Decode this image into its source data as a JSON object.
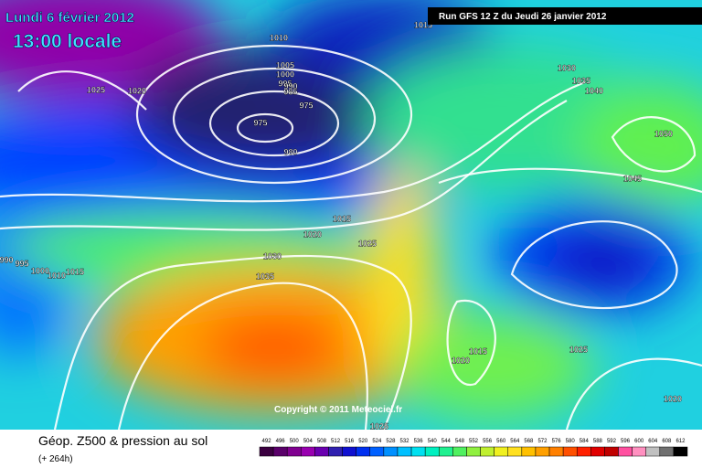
{
  "header": {
    "date": "Lundi 6 février 2012",
    "time": "13:00 locale",
    "run": "Run GFS 12 Z du Jeudi 26 janvier 2012"
  },
  "map": {
    "isobar_labels": [
      "1010",
      "1015",
      "1025",
      "1020",
      "1005",
      "1000",
      "995",
      "990",
      "985",
      "975",
      "975",
      "980",
      "1030",
      "1035",
      "1040",
      "1050",
      "1045",
      "1015",
      "1020",
      "1025",
      "1030",
      "1035",
      "990",
      "995",
      "1000",
      "1010",
      "1015",
      "1015",
      "1020",
      "1025",
      "1020",
      "1025"
    ],
    "copyright": "Copyright © 2011 Meteociel.fr"
  },
  "footer": {
    "title": "Géop. Z500 & pression au sol",
    "lead": "(+ 264h)"
  },
  "scale": {
    "labels": [
      "492",
      "496",
      "500",
      "504",
      "508",
      "512",
      "516",
      "520",
      "524",
      "528",
      "532",
      "536",
      "540",
      "544",
      "548",
      "552",
      "556",
      "560",
      "564",
      "568",
      "572",
      "576",
      "580",
      "584",
      "588",
      "592",
      "596",
      "600",
      "604",
      "608",
      "612"
    ],
    "colors": [
      "#3b0040",
      "#5a006a",
      "#800090",
      "#9900b0",
      "#6a00b0",
      "#3020b0",
      "#1010d0",
      "#0030f0",
      "#0060ff",
      "#0090ff",
      "#00c0ff",
      "#00e0f0",
      "#00f0c0",
      "#20f090",
      "#50f060",
      "#90f040",
      "#c0f030",
      "#f0f020",
      "#ffe020",
      "#ffc000",
      "#ffa000",
      "#ff8000",
      "#ff5000",
      "#ff2000",
      "#e00000",
      "#c00000",
      "#ff50a0",
      "#ff90c0",
      "#c0c0c0",
      "#707070",
      "#000000"
    ]
  }
}
